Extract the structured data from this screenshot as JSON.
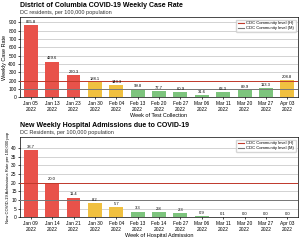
{
  "chart_data": [
    {
      "type": "bar",
      "title": "District of Columbia COVID-19 Weekly Case Rate",
      "subtitle": "DC residents, per 100,000 population",
      "x_label": "Week of Test Collection",
      "y_label": "Weekly Case Rate",
      "categories": [
        "Jan 05\n2022",
        "Jan 13\n2022",
        "Jan 23\n2022",
        "Jan 30\n2022",
        "Feb 04\n2022",
        "Feb 13\n2022",
        "Feb 20\n2022",
        "Feb 27\n2022",
        "Mar 06\n2022",
        "Mar 11\n2022",
        "Mar 20\n2022",
        "Mar 27\n2022",
        "Apr 03\n2022"
      ],
      "values": [
        865.8,
        429.6,
        270.3,
        188.1,
        143.3,
        99.8,
        77.7,
        60.9,
        31.6,
        63.3,
        89.9,
        113.3,
        208.8
      ],
      "colors": [
        "#e8524a",
        "#e8524a",
        "#e8524a",
        "#f0c040",
        "#f0c040",
        "#7dc47d",
        "#7dc47d",
        "#7dc47d",
        "#7dc47d",
        "#7dc47d",
        "#7dc47d",
        "#7dc47d",
        "#f0c040"
      ],
      "reference_lines": [
        {
          "name": "CDC Community level (H)",
          "value": 200,
          "color": "#c0392b"
        },
        {
          "name": "CDC Community level (M)",
          "value": 100,
          "color": "#777777"
        }
      ],
      "legend": "upper right",
      "data_labels": true,
      "grid": true,
      "ylim": [
        0,
        960
      ],
      "yticks": [
        0,
        100,
        200,
        300,
        400,
        500,
        600,
        700,
        800,
        900
      ]
    },
    {
      "type": "bar",
      "title": "New Weekly Hospital Admissions due to COVID-19",
      "subtitle": "DC Residents, per 100,000 population",
      "x_label": "Week of Hospital Admission",
      "y_label": "New COVID-19 Admissions Rate per 100,000 pop",
      "categories": [
        "Jan 09\n2022",
        "Jan 14\n2022",
        "Jan 21\n2022",
        "Jan 30\n2022",
        "Feb 04\n2022",
        "Feb 13\n2022",
        "Feb 14\n2022",
        "Feb 27\n2022",
        "Mar 06\n2022",
        "Mar 11\n2022",
        "Mar 20\n2022",
        "Mar 27\n2022",
        "Apr 03\n2022"
      ],
      "values": [
        38.7,
        20.0,
        11.4,
        8.2,
        5.7,
        3.3,
        2.8,
        2.3,
        0.9,
        0.1,
        0.0,
        0.0,
        0.0
      ],
      "colors": [
        "#e8524a",
        "#e8524a",
        "#e8524a",
        "#f0c040",
        "#f0c040",
        "#7dc47d",
        "#7dc47d",
        "#7dc47d",
        "#7dc47d",
        "#7dc47d",
        "#7dc47d",
        "#7dc47d",
        "#7dc47d"
      ],
      "reference_lines": [
        {
          "name": "CDC Community level (H)",
          "value": 20.0,
          "color": "#c0392b"
        },
        {
          "name": "CDC Community level (M)",
          "value": 10.0,
          "color": "#777777"
        }
      ],
      "legend": "upper right",
      "data_labels": true,
      "grid": true,
      "ylim": [
        0,
        46
      ],
      "yticks": [
        0,
        5,
        10,
        15,
        20,
        25,
        30,
        35,
        40
      ]
    }
  ]
}
